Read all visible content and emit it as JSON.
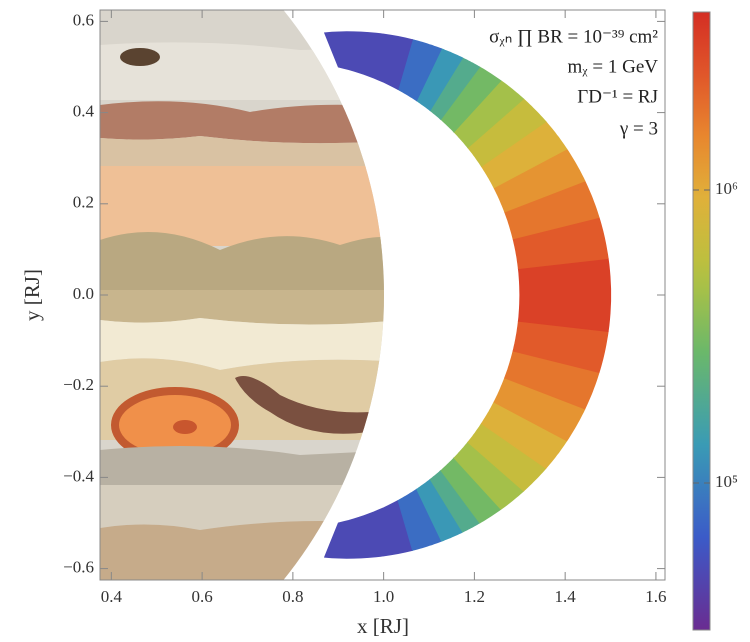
{
  "chart_data": {
    "type": "contour",
    "xlabel": "x [RJ]",
    "ylabel": "y [RJ]",
    "annotations": [
      "σᵪₙ ∏ BR = 10⁻³⁹ cm²",
      "mᵪ = 1 GeV",
      "ΓD⁻¹ = RJ",
      "γ = 3"
    ],
    "xlim": [
      0.375,
      1.62
    ],
    "ylim": [
      -0.625,
      0.625
    ],
    "xticks": [
      0.4,
      0.6,
      0.8,
      {
        "value": 1,
        "label": "1.0"
      },
      1.2,
      1.4,
      1.6
    ],
    "yticks": [
      {
        "value": -0.6,
        "label": "−0.6"
      },
      {
        "value": -0.4,
        "label": "−0.4"
      },
      {
        "value": -0.2,
        "label": "−0.2"
      },
      {
        "value": 0,
        "label": "0.0"
      },
      0.2,
      0.4,
      0.6
    ],
    "y_edges": [
      -0.575,
      -0.56,
      -0.54,
      -0.52,
      -0.5,
      -0.47,
      -0.43,
      -0.38,
      -0.32,
      -0.25,
      -0.17,
      -0.08,
      0.08,
      0.17,
      0.25,
      0.32,
      0.38,
      0.43,
      0.47,
      0.5,
      0.52,
      0.54,
      0.56,
      0.575
    ],
    "values": [
      50000,
      80000,
      130000,
      200000,
      300000,
      450000,
      650000,
      900000,
      1300000,
      1800000,
      2400000,
      3200000,
      2400000,
      1800000,
      1300000,
      900000,
      650000,
      450000,
      300000,
      200000,
      130000,
      80000,
      50000
    ],
    "colorbar": {
      "scale": "log",
      "lim": [
        31500,
        4050000
      ],
      "ticks": [
        {
          "value": 100000,
          "label": "10⁵"
        },
        {
          "value": 1000000,
          "label": "10⁶"
        }
      ]
    }
  }
}
